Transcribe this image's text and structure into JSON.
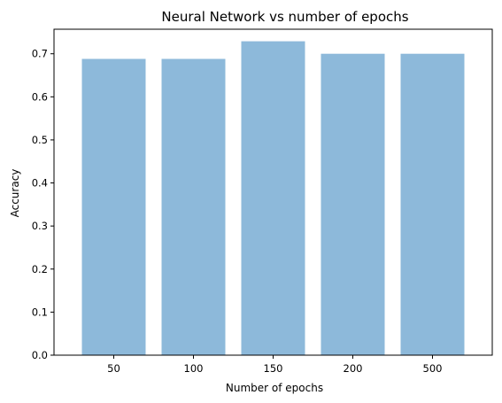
{
  "chart_data": {
    "type": "bar",
    "title": "Neural Network vs number of epochs",
    "xlabel": "Number of epochs",
    "ylabel": "Accuracy",
    "categories": [
      "50",
      "100",
      "150",
      "200",
      "500"
    ],
    "values": [
      0.688,
      0.688,
      0.729,
      0.7,
      0.7
    ],
    "ylim": [
      0,
      0.757
    ],
    "yticks": [
      "0.0",
      "0.1",
      "0.2",
      "0.3",
      "0.4",
      "0.5",
      "0.6",
      "0.7"
    ],
    "grid": false,
    "bar_color": "#8db9da"
  }
}
